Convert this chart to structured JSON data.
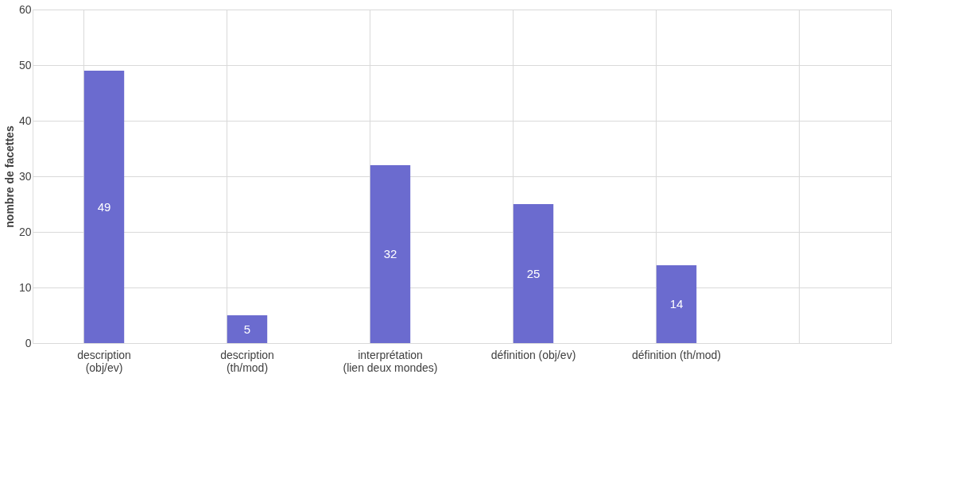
{
  "chart_data": {
    "type": "bar",
    "ylabel": "nombre de facettes",
    "categories": [
      "description (obj/ev)",
      "description (th/mod)",
      "interprétation (lien deux mondes)",
      "définition (obj/ev)",
      "définition (th/mod)",
      null
    ],
    "values": [
      49,
      5,
      32,
      25,
      14,
      null
    ],
    "color": "#6b6bcf",
    "ylim": [
      0,
      60
    ],
    "yticks": [
      0,
      10,
      20,
      30,
      40,
      50,
      60
    ],
    "grid": true,
    "data_labels": true
  }
}
